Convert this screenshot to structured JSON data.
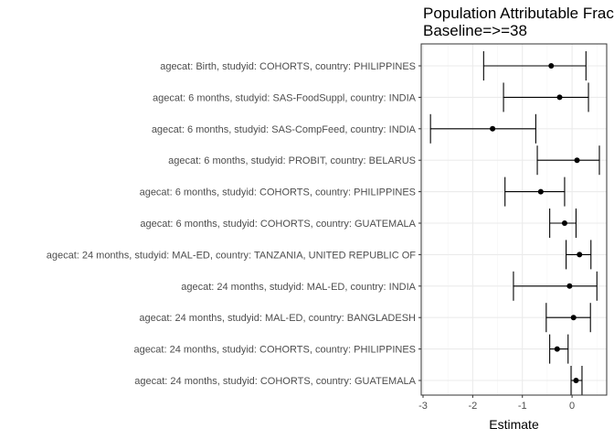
{
  "chart_data": {
    "type": "forest",
    "title_lines": [
      "Population Attributable Fraction",
      "Baseline=>=38"
    ],
    "xlabel": "Estimate",
    "ylabel": "",
    "xlim": [
      -3,
      0.7
    ],
    "x_ticks": [
      -3,
      -2,
      -1,
      0
    ],
    "x_tick_labels": [
      "-3",
      "-2",
      "-1",
      "0"
    ],
    "grid": true,
    "legend": "none",
    "colors": {
      "panel_background": "#ffffff",
      "grid_major": "#ebebeb",
      "grid_minor": "#f5f5f5",
      "panel_border": "#333333",
      "point": "#000000",
      "errorbar": "#000000"
    },
    "rows": [
      {
        "label": "agecat: Birth, studyid: COHORTS, country: PHILIPPINES",
        "estimate": -0.42,
        "lower": -1.78,
        "upper": 0.28
      },
      {
        "label": "agecat: 6 months, studyid: SAS-FoodSuppl, country: INDIA",
        "estimate": -0.25,
        "lower": -1.38,
        "upper": 0.33
      },
      {
        "label": "agecat: 6 months, studyid: SAS-CompFeed, country: INDIA",
        "estimate": -1.6,
        "lower": -2.85,
        "upper": -0.73
      },
      {
        "label": "agecat: 6 months, studyid: PROBIT, country: BELARUS",
        "estimate": 0.1,
        "lower": -0.7,
        "upper": 0.55
      },
      {
        "label": "agecat: 6 months, studyid: COHORTS, country: PHILIPPINES",
        "estimate": -0.63,
        "lower": -1.35,
        "upper": -0.15
      },
      {
        "label": "agecat: 6 months, studyid: COHORTS, country: GUATEMALA",
        "estimate": -0.15,
        "lower": -0.45,
        "upper": 0.08
      },
      {
        "label": "agecat: 24 months, studyid: MAL-ED, country: TANZANIA, UNITED REPUBLIC OF",
        "estimate": 0.15,
        "lower": -0.12,
        "upper": 0.38
      },
      {
        "label": "agecat: 24 months, studyid: MAL-ED, country: INDIA",
        "estimate": -0.05,
        "lower": -1.18,
        "upper": 0.5
      },
      {
        "label": "agecat: 24 months, studyid: MAL-ED, country: BANGLADESH",
        "estimate": 0.03,
        "lower": -0.52,
        "upper": 0.37
      },
      {
        "label": "agecat: 24 months, studyid: COHORTS, country: PHILIPPINES",
        "estimate": -0.3,
        "lower": -0.45,
        "upper": -0.08
      },
      {
        "label": "agecat: 24 months, studyid: COHORTS, country: GUATEMALA",
        "estimate": 0.08,
        "lower": -0.02,
        "upper": 0.2
      }
    ]
  }
}
